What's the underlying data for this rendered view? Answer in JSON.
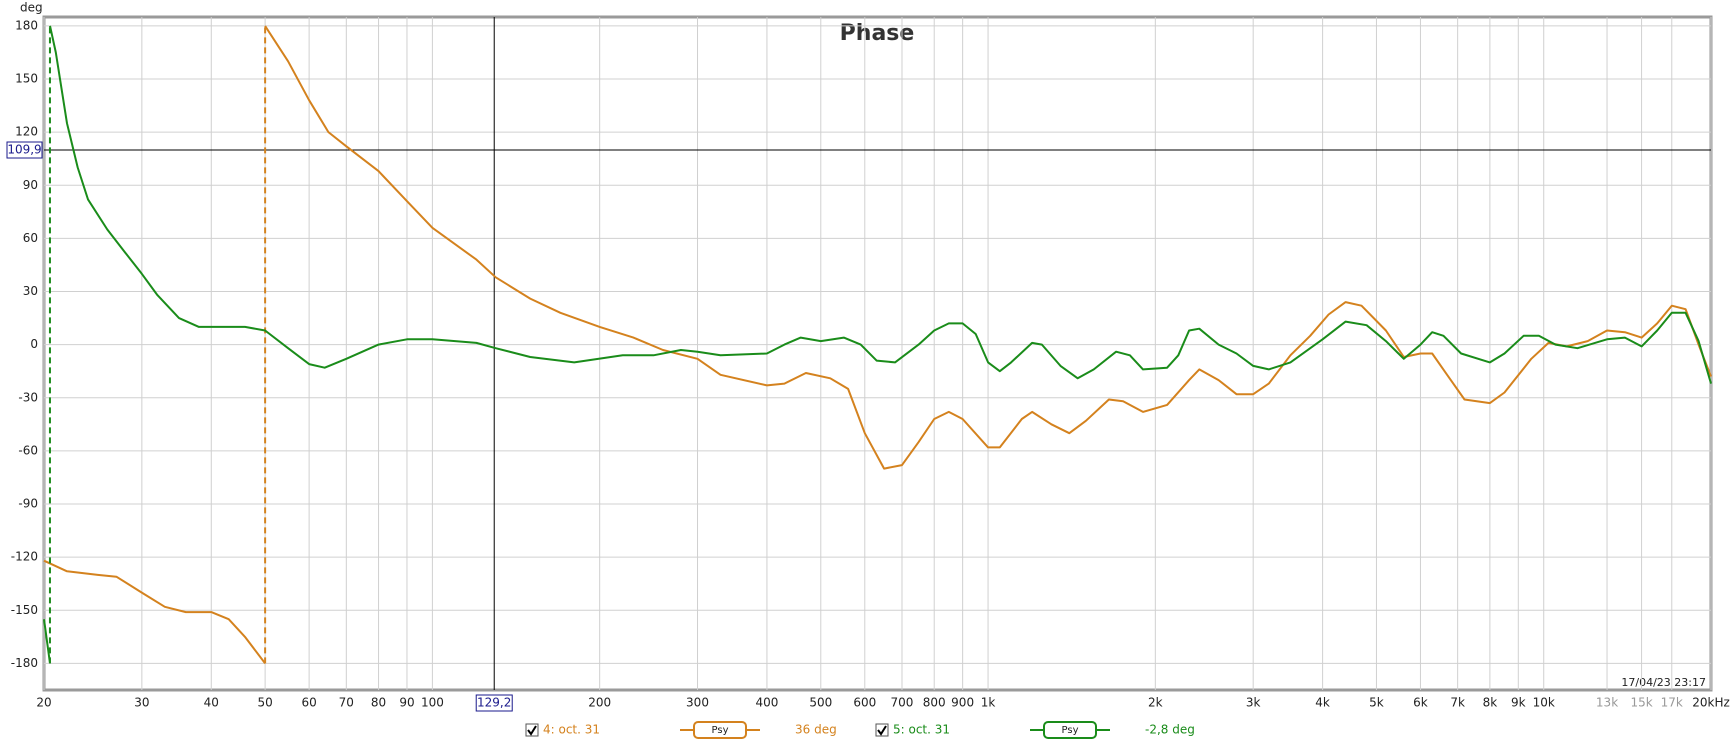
{
  "chart_data": {
    "type": "line",
    "title": "Phase",
    "y_unit": "deg",
    "timestamp": "17/04/23 23:17",
    "xscale": "log",
    "grid": true,
    "xlim": [
      20,
      20000
    ],
    "ylim": [
      -195,
      185
    ],
    "yticks": [
      180,
      150,
      120,
      90,
      60,
      30,
      0,
      -30,
      -60,
      -90,
      -120,
      -150,
      -180
    ],
    "xticks": [
      20,
      30,
      40,
      50,
      60,
      70,
      80,
      90,
      100,
      200,
      300,
      400,
      500,
      600,
      700,
      800,
      900,
      {
        "value": 1000,
        "label": "1k"
      },
      {
        "value": 2000,
        "label": "2k"
      },
      {
        "value": 3000,
        "label": "3k"
      },
      {
        "value": 4000,
        "label": "4k"
      },
      {
        "value": 5000,
        "label": "5k"
      },
      {
        "value": 6000,
        "label": "6k"
      },
      {
        "value": 7000,
        "label": "7k"
      },
      {
        "value": 8000,
        "label": "8k"
      },
      {
        "value": 9000,
        "label": "9k"
      },
      {
        "value": 10000,
        "label": "10k"
      },
      {
        "value": 13000,
        "label": "13k",
        "color": "#999999"
      },
      {
        "value": 15000,
        "label": "15k",
        "color": "#999999"
      },
      {
        "value": 17000,
        "label": "17k",
        "color": "#999999"
      },
      {
        "value": 20000,
        "label": "20kHz"
      }
    ],
    "cursor": {
      "x": {
        "value": 129.2,
        "label": "129,2"
      },
      "y": {
        "value": 109.9,
        "label": "109,9"
      }
    },
    "series": [
      {
        "name": "4: oct. 31",
        "smoothing": "Psy",
        "readout": "36 deg",
        "color": "#d4821e",
        "x": [
          20,
          22,
          25,
          27,
          30,
          33,
          36,
          40,
          43,
          46,
          50,
          50,
          55,
          60,
          65,
          70,
          80,
          90,
          100,
          120,
          130,
          150,
          170,
          200,
          230,
          260,
          300,
          330,
          400,
          430,
          470,
          520,
          560,
          600,
          650,
          700,
          750,
          800,
          850,
          900,
          1000,
          1050,
          1150,
          1200,
          1300,
          1400,
          1500,
          1650,
          1750,
          1900,
          2100,
          2300,
          2400,
          2600,
          2800,
          3000,
          3200,
          3500,
          3800,
          4100,
          4400,
          4700,
          5200,
          5600,
          6000,
          6300,
          6700,
          7200,
          8000,
          8500,
          9500,
          10200,
          11000,
          12000,
          13000,
          14000,
          15000,
          16000,
          17000,
          18000,
          19000,
          20000
        ],
        "values": [
          -122,
          -128,
          -130,
          -131,
          -140,
          -148,
          -151,
          -151,
          -155,
          -165,
          -180,
          180,
          160,
          138,
          120,
          112,
          98,
          81,
          66,
          48,
          38,
          26,
          18,
          10,
          4,
          -3,
          -8,
          -17,
          -23,
          -22,
          -16,
          -19,
          -25,
          -50,
          -70,
          -68,
          -55,
          -42,
          -38,
          -42,
          -58,
          -58,
          -42,
          -38,
          -45,
          -50,
          -43,
          -31,
          -32,
          -38,
          -34,
          -20,
          -14,
          -20,
          -28,
          -28,
          -22,
          -6,
          5,
          17,
          24,
          22,
          8,
          -7,
          -5,
          -5,
          -17,
          -31,
          -33,
          -27,
          -8,
          1,
          -1,
          2,
          8,
          7,
          4,
          12,
          22,
          20,
          0,
          -18
        ]
      },
      {
        "name": "5: oct. 31",
        "smoothing": "Psy",
        "readout": "-2,8 deg",
        "color": "#1a8c1a",
        "x": [
          20,
          20.5,
          20.5,
          21,
          22,
          23,
          24,
          26,
          28,
          30,
          32,
          35,
          38,
          42,
          46,
          50,
          55,
          60,
          64,
          70,
          80,
          90,
          100,
          120,
          130,
          150,
          180,
          220,
          250,
          280,
          300,
          330,
          400,
          430,
          460,
          500,
          550,
          590,
          630,
          680,
          750,
          800,
          850,
          900,
          950,
          1000,
          1050,
          1100,
          1200,
          1250,
          1350,
          1450,
          1550,
          1700,
          1800,
          1900,
          2100,
          2200,
          2300,
          2400,
          2600,
          2800,
          3000,
          3200,
          3500,
          4000,
          4400,
          4800,
          5200,
          5600,
          6000,
          6300,
          6600,
          7100,
          8000,
          8500,
          9200,
          9800,
          10500,
          11500,
          13000,
          14000,
          15000,
          16000,
          17000,
          18000,
          19000,
          20000
        ],
        "values": [
          -155,
          -180,
          180,
          165,
          125,
          100,
          82,
          65,
          52,
          40,
          28,
          15,
          10,
          10,
          10,
          8,
          -2,
          -11,
          -13,
          -8,
          0,
          3,
          3,
          1,
          -2,
          -7,
          -10,
          -6,
          -6,
          -3,
          -4,
          -6,
          -5,
          0,
          4,
          2,
          4,
          0,
          -9,
          -10,
          0,
          8,
          12,
          12,
          6,
          -10,
          -15,
          -10,
          1,
          0,
          -12,
          -19,
          -14,
          -4,
          -6,
          -14,
          -13,
          -6,
          8,
          9,
          0,
          -5,
          -12,
          -14,
          -10,
          3,
          13,
          11,
          2,
          -8,
          0,
          7,
          5,
          -5,
          -10,
          -5,
          5,
          5,
          0,
          -2,
          3,
          4,
          -1,
          8,
          18,
          18,
          2,
          -22
        ]
      }
    ]
  }
}
